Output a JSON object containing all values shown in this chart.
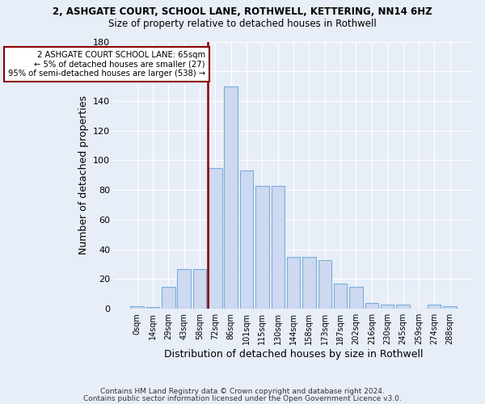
{
  "title": "2, ASHGATE COURT, SCHOOL LANE, ROTHWELL, KETTERING, NN14 6HZ",
  "subtitle": "Size of property relative to detached houses in Rothwell",
  "xlabel": "Distribution of detached houses by size in Rothwell",
  "ylabel": "Number of detached properties",
  "bar_color": "#ccd9f0",
  "bar_edge_color": "#7aaedc",
  "background_color": "#e8eef8",
  "grid_color": "#ffffff",
  "annotation_box_color": "#ffffff",
  "annotation_border_color": "#8b0000",
  "vertical_line_color": "#8b0000",
  "bins": [
    "0sqm",
    "14sqm",
    "29sqm",
    "43sqm",
    "58sqm",
    "72sqm",
    "86sqm",
    "101sqm",
    "115sqm",
    "130sqm",
    "144sqm",
    "158sqm",
    "173sqm",
    "187sqm",
    "202sqm",
    "216sqm",
    "230sqm",
    "245sqm",
    "259sqm",
    "274sqm",
    "288sqm"
  ],
  "values": [
    2,
    1,
    15,
    27,
    27,
    95,
    150,
    93,
    83,
    83,
    35,
    35,
    33,
    17,
    15,
    4,
    3,
    3,
    0,
    3,
    2
  ],
  "property_bin_index": 4,
  "annotation_line1": "2 ASHGATE COURT SCHOOL LANE: 65sqm",
  "annotation_line2": "← 5% of detached houses are smaller (27)",
  "annotation_line3": "95% of semi-detached houses are larger (538) →",
  "ylim": [
    0,
    180
  ],
  "yticks": [
    0,
    20,
    40,
    60,
    80,
    100,
    120,
    140,
    160,
    180
  ],
  "footer_line1": "Contains HM Land Registry data © Crown copyright and database right 2024.",
  "footer_line2": "Contains public sector information licensed under the Open Government Licence v3.0."
}
